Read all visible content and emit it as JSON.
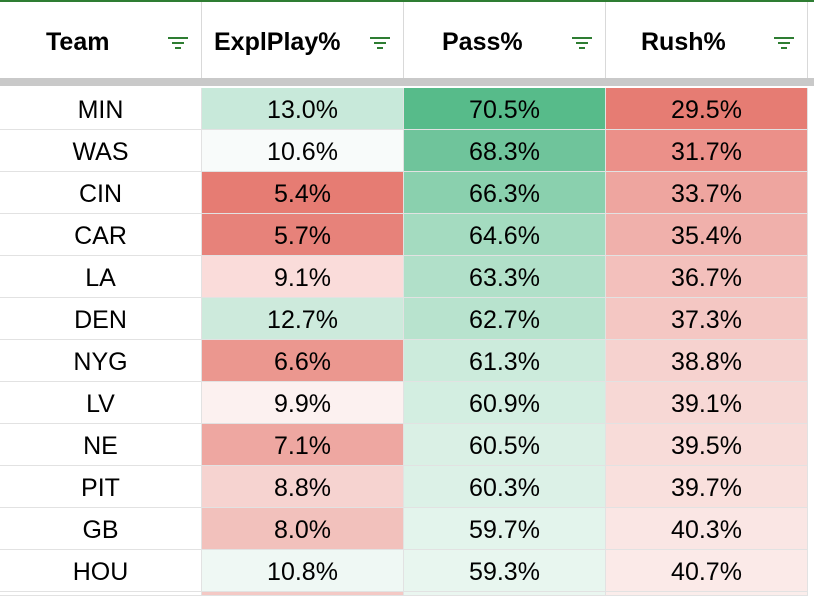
{
  "headers": [
    "Team",
    "ExplPlay%",
    "Pass%",
    "Rush%"
  ],
  "filter_icon": "filter-icon",
  "colors": {
    "accent": "#2e7d32",
    "freeze_bar": "#c9c9c9",
    "gridline": "#e2e2e2"
  },
  "rows": [
    {
      "team": "MIN",
      "expl": "13.0%",
      "pass": "70.5%",
      "rush": "29.5%",
      "colors": {
        "expl": "#c8e9da",
        "pass": "#57bb8a",
        "rush": "#e67c73"
      }
    },
    {
      "team": "WAS",
      "expl": "10.6%",
      "pass": "68.3%",
      "rush": "31.7%",
      "colors": {
        "expl": "#f8fbfa",
        "pass": "#6fc49b",
        "rush": "#eb9089"
      }
    },
    {
      "team": "CIN",
      "expl": "5.4%",
      "pass": "66.3%",
      "rush": "33.7%",
      "colors": {
        "expl": "#e67c73",
        "pass": "#8ad0ae",
        "rush": "#eea59f"
      }
    },
    {
      "team": "CAR",
      "expl": "5.7%",
      "pass": "64.6%",
      "rush": "35.4%",
      "colors": {
        "expl": "#e7827a",
        "pass": "#a4dbc0",
        "rush": "#f0b0ab"
      }
    },
    {
      "team": "LA",
      "expl": "9.1%",
      "pass": "63.3%",
      "rush": "36.7%",
      "colors": {
        "expl": "#fadcda",
        "pass": "#b1e0c9",
        "rush": "#f3c0bc"
      }
    },
    {
      "team": "DEN",
      "expl": "12.7%",
      "pass": "62.7%",
      "rush": "37.3%",
      "colors": {
        "expl": "#cdeadc",
        "pass": "#b8e3ce",
        "rush": "#f4c7c3"
      }
    },
    {
      "team": "NYG",
      "expl": "6.6%",
      "pass": "61.3%",
      "rush": "38.8%",
      "colors": {
        "expl": "#eb978f",
        "pass": "#ccebdc",
        "rush": "#f6d2cf"
      }
    },
    {
      "team": "LV",
      "expl": "9.9%",
      "pass": "60.9%",
      "rush": "39.1%",
      "colors": {
        "expl": "#fcf1f0",
        "pass": "#d3eee1",
        "rush": "#f7d8d5"
      }
    },
    {
      "team": "NE",
      "expl": "7.1%",
      "pass": "60.5%",
      "rush": "39.5%",
      "colors": {
        "expl": "#eea7a1",
        "pass": "#daf0e5",
        "rush": "#f8dcd9"
      }
    },
    {
      "team": "PIT",
      "expl": "8.8%",
      "pass": "60.3%",
      "rush": "39.7%",
      "colors": {
        "expl": "#f6d3d0",
        "pass": "#dcf1e7",
        "rush": "#f9e0dd"
      }
    },
    {
      "team": "GB",
      "expl": "8.0%",
      "pass": "59.7%",
      "rush": "40.3%",
      "colors": {
        "expl": "#f2c1bc",
        "pass": "#e3f4ec",
        "rush": "#fae6e4"
      }
    },
    {
      "team": "HOU",
      "expl": "10.8%",
      "pass": "59.3%",
      "rush": "40.7%",
      "colors": {
        "expl": "#eff8f4",
        "pass": "#e8f6ef",
        "rush": "#fbeae8"
      }
    }
  ],
  "partial_row": {
    "colors": {
      "expl": "#f4c9c5",
      "pass": "#eaf6f0",
      "rush": "#fbedeb"
    }
  }
}
